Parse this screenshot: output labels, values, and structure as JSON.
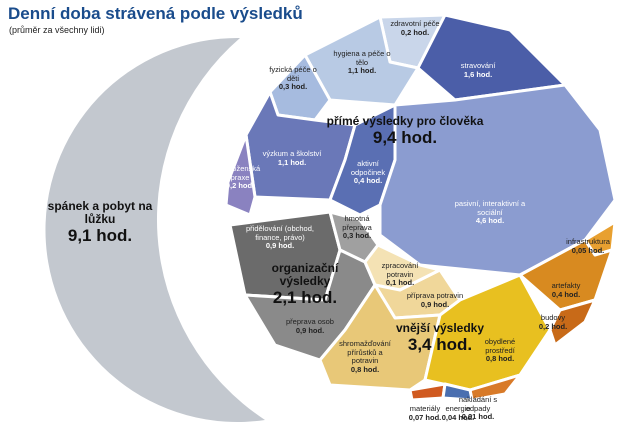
{
  "chart_data": {
    "type": "voronoi",
    "title": "Denní doba strávená podle výsledků",
    "subtitle": "(průměr za všechny lidi)",
    "groups": [
      {
        "name": "spánek a pobyt na lůžku",
        "value": 9.1,
        "value_label": "9,1 hod.",
        "color": "#c3c8cf"
      },
      {
        "name": "přímé výsledky pro člověka",
        "value": 9.4,
        "value_label": "9,4 hod.",
        "cells": [
          {
            "name": "zdravotní péče",
            "value": 0.2,
            "value_label": "0,2 hod.",
            "color": "#c9d6ea"
          },
          {
            "name": "hygiena a péče o tělo",
            "value": 1.1,
            "value_label": "1,1 hod.",
            "color": "#b8cae4"
          },
          {
            "name": "fyzická péče o děti",
            "value": 0.3,
            "value_label": "0,3 hod.",
            "color": "#a6bbdf"
          },
          {
            "name": "stravování",
            "value": 1.6,
            "value_label": "1,6 hod.",
            "color": "#4b5ea8"
          },
          {
            "name": "výzkum a školství",
            "value": 1.1,
            "value_label": "1,1 hod.",
            "color": "#6a78b8"
          },
          {
            "name": "náboženská praxe",
            "value": 0.2,
            "value_label": "0,2 hod.",
            "color": "#8a82c0"
          },
          {
            "name": "aktivní odpočinek",
            "value": 0.4,
            "value_label": "0,4 hod.",
            "color": "#5a6fb3"
          },
          {
            "name": "pasivní, interaktivní a sociální",
            "value": 4.6,
            "value_label": "4,6 hod.",
            "color": "#8b9cd0"
          }
        ]
      },
      {
        "name": "organizační výsledky",
        "value": 2.1,
        "value_label": "2,1 hod.",
        "cells": [
          {
            "name": "přidělování (obchod, finance, právo)",
            "value": 0.9,
            "value_label": "0,9 hod.",
            "color": "#6b6b6b"
          },
          {
            "name": "hmotná přeprava",
            "value": 0.3,
            "value_label": "0,3 hod.",
            "color": "#a0a0a0"
          },
          {
            "name": "přeprava osob",
            "value": 0.9,
            "value_label": "0,9 hod.",
            "color": "#8a8a8a"
          }
        ]
      },
      {
        "name": "vnější výsledky",
        "value": 3.4,
        "value_label": "3,4 hod.",
        "cells": [
          {
            "name": "zpracování potravin",
            "value": 0.1,
            "value_label": "0,1 hod.",
            "color": "#f4e2b4"
          },
          {
            "name": "příprava potravin",
            "value": 0.9,
            "value_label": "0,9 hod.",
            "color": "#f0d79a"
          },
          {
            "name": "shromažďování přírůstků a potravin",
            "value": 0.8,
            "value_label": "0,8 hod.",
            "color": "#e8c878"
          },
          {
            "name": "obydlené prostředí",
            "value": 0.8,
            "value_label": "0,8 hod.",
            "color": "#e8c020"
          },
          {
            "name": "infrastruktura",
            "value": 0.05,
            "value_label": "0,05 hod.",
            "color": "#e8a030"
          },
          {
            "name": "artefakty",
            "value": 0.4,
            "value_label": "0,4 hod.",
            "color": "#d88a20"
          },
          {
            "name": "budovy",
            "value": 0.2,
            "value_label": "0,2 hod.",
            "color": "#c86a18"
          },
          {
            "name": "nakládání s odpady",
            "value": 0.01,
            "value_label": "0,01 hod.",
            "color": "#d87a28"
          },
          {
            "name": "materiály",
            "value": 0.07,
            "value_label": "0,07 hod.",
            "color": "#d05a20"
          },
          {
            "name": "energie",
            "value": 0.04,
            "value_label": "0,04 hod.",
            "color": "#4a6fb0"
          }
        ]
      }
    ]
  }
}
